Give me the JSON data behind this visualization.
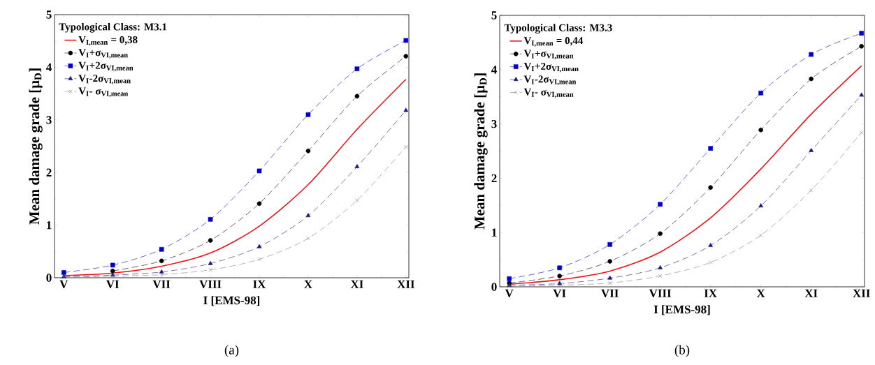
{
  "chart_data": [
    {
      "type": "line",
      "legend_title": "Typological Class: M3.1",
      "xlabel": "I [EMS-98]",
      "ylabel": "Mean damage grade [μ$_{D}$]",
      "categories": [
        "V",
        "VI",
        "VII",
        "VIII",
        "IX",
        "X",
        "XI",
        "XII"
      ],
      "series": [
        {
          "name": "V$_{I,mean}$ = 0,38",
          "color": "#e8141b",
          "marker": "none",
          "line_style": "solid",
          "values": [
            0.04,
            0.09,
            0.22,
            0.47,
            0.98,
            1.77,
            2.82,
            3.77
          ]
        },
        {
          "name": "V$_{I}$+σ$_{VI,mean}$",
          "color": "#000000",
          "marker": "circle",
          "line_style": "dashed",
          "values": [
            null,
            0.13,
            0.32,
            0.71,
            1.41,
            2.41,
            3.45,
            4.21
          ]
        },
        {
          "name": "V$_{I}$+2σ$_{VI,mean}$",
          "color": "#0000cc",
          "marker": "square",
          "line_style": "dashed",
          "values": [
            0.1,
            0.24,
            0.54,
            1.11,
            2.03,
            3.1,
            3.97,
            4.51
          ]
        },
        {
          "name": "V$_{I}$-2σ$_{VI,mean}$",
          "color": "#1a1a80",
          "marker": "triangle",
          "line_style": "dashed",
          "values": [
            0.02,
            0.05,
            0.11,
            0.27,
            0.59,
            1.18,
            2.11,
            3.18
          ]
        },
        {
          "name": "V$_{I}$- σ$_{VI,mean}$",
          "color": "#808080",
          "marker": "cross",
          "line_style": "dashed",
          "values": [
            0.01,
            0.03,
            0.06,
            0.15,
            0.35,
            0.75,
            1.47,
            2.49
          ]
        }
      ],
      "ylim": [
        0,
        5
      ],
      "yticks": [
        0,
        1,
        2,
        3,
        4,
        5
      ],
      "legend": "top left",
      "annotations": [
        "(a)"
      ]
    },
    {
      "type": "line",
      "legend_title": "Typological Class: M3.3",
      "xlabel": "I [EMS-98]",
      "ylabel": "Mean damage grade [μ$_{D}$]",
      "categories": [
        "V",
        "VI",
        "VII",
        "VIII",
        "IX",
        "X",
        "XI",
        "XII"
      ],
      "series": [
        {
          "name": "V$_{I,mean}$ = 0,44",
          "color": "#e8141b",
          "marker": "none",
          "line_style": "solid",
          "values": [
            0.05,
            0.13,
            0.29,
            0.64,
            1.27,
            2.17,
            3.18,
            4.07
          ]
        },
        {
          "name": "V$_{I}$+σ$_{VI,mean}$",
          "color": "#000000",
          "marker": "circle",
          "line_style": "dashed",
          "values": [
            0.07,
            0.2,
            0.47,
            0.98,
            1.83,
            2.89,
            3.83,
            4.43
          ]
        },
        {
          "name": "V$_{I}$+2σ$_{VI,mean}$",
          "color": "#0000cc",
          "marker": "square",
          "line_style": "dashed",
          "values": [
            0.15,
            0.35,
            0.78,
            1.52,
            2.55,
            3.57,
            4.28,
            4.67
          ]
        },
        {
          "name": "V$_{I}$-2σ$_{VI,mean}$",
          "color": "#1a1a80",
          "marker": "triangle",
          "line_style": "dashed",
          "values": [
            0.03,
            0.06,
            0.16,
            0.35,
            0.76,
            1.49,
            2.51,
            3.53
          ]
        },
        {
          "name": "V$_{I}$- σ$_{VI,mean}$",
          "color": "#808080",
          "marker": "cross",
          "line_style": "dashed",
          "values": [
            0.01,
            0.03,
            0.07,
            0.2,
            0.45,
            0.95,
            1.78,
            2.84
          ]
        }
      ],
      "ylim": [
        0,
        5
      ],
      "yticks": [
        0,
        1,
        2,
        3,
        4,
        5
      ],
      "legend": "top left",
      "annotations": [
        "(b)"
      ]
    }
  ]
}
